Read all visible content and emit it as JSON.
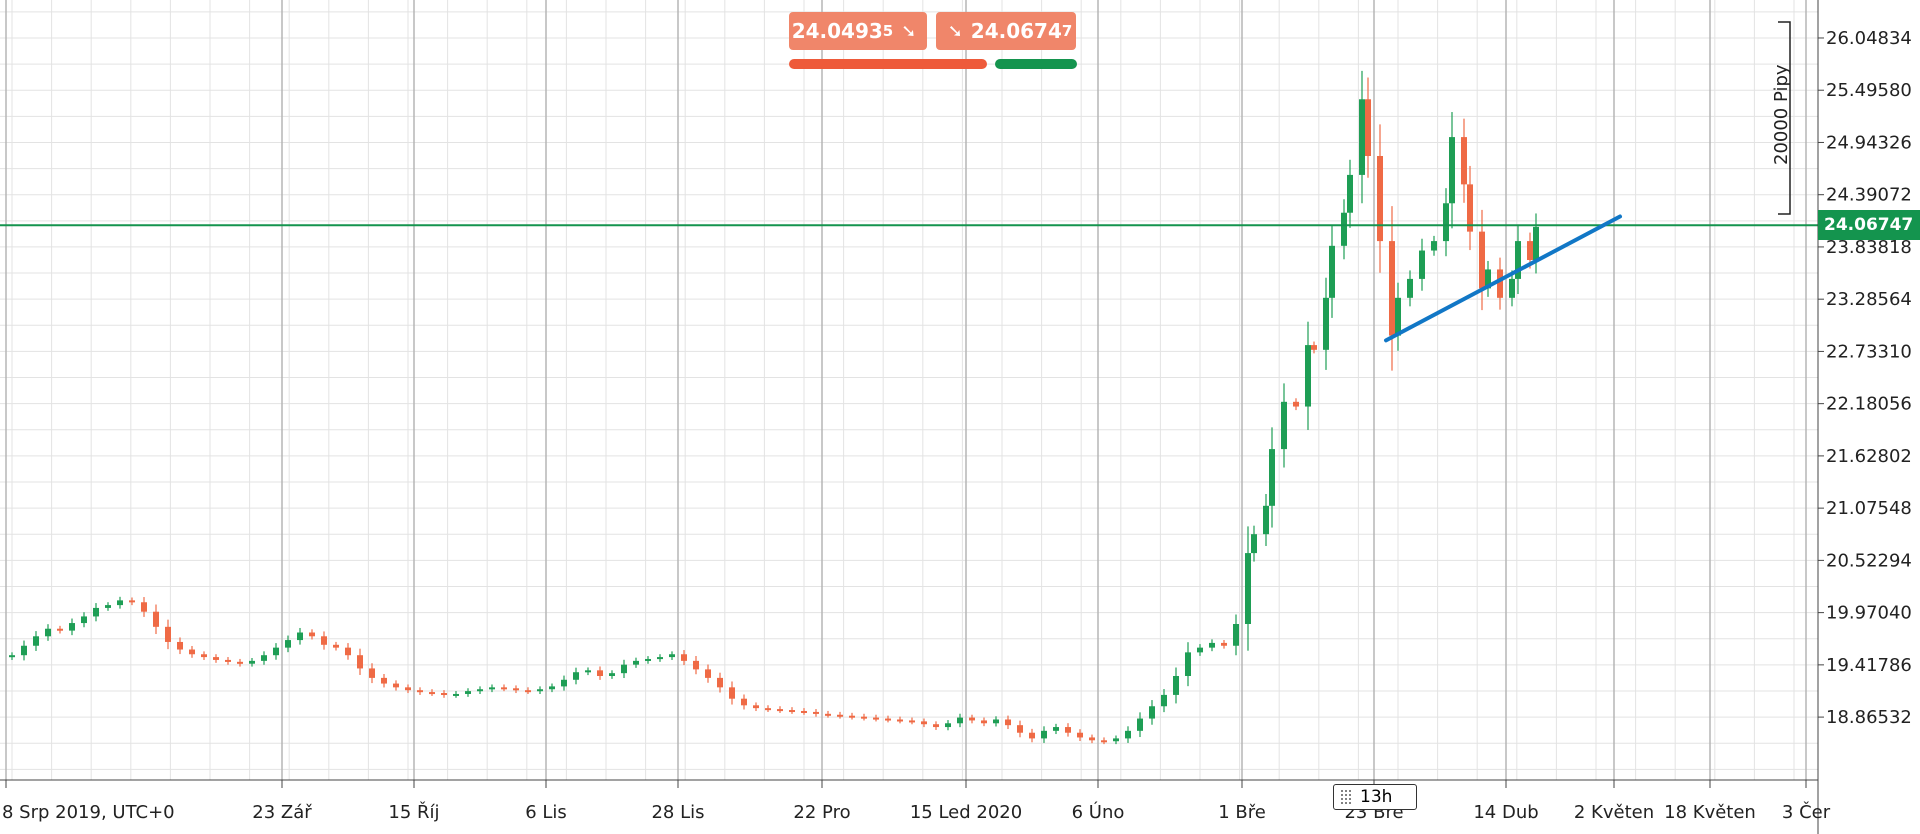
{
  "quotes": {
    "sell": {
      "main": "24.0493",
      "last": "5",
      "arrow": "➘"
    },
    "buy": {
      "main": "24.0674",
      "last": "7",
      "arrow": "➘"
    },
    "sell_ratio": 0.7,
    "buy_ratio": 0.3
  },
  "colors": {
    "up": "#1e9e55",
    "down": "#ef6a45",
    "trend": "#1177c6",
    "price_line": "#14944e",
    "grid": "#e3e3e3",
    "sell_badge": "#f0866a",
    "sell_bar": "#ee5a3a",
    "buy_bar": "#14944e"
  },
  "range_label": "20000 Pipy",
  "timeframe": "13h",
  "chart_data": {
    "type": "candlestick",
    "current_price": 24.06747,
    "current_price_label": "24.06747",
    "y_ticks": [
      "26.04834",
      "25.49580",
      "24.94326",
      "24.39072",
      "23.83818",
      "23.28564",
      "22.73310",
      "22.18056",
      "21.62802",
      "21.07548",
      "20.52294",
      "19.97040",
      "19.41786",
      "18.86532"
    ],
    "ylim": [
      18.2,
      26.45
    ],
    "x_labels": [
      {
        "label": "8 Srp 2019, UTC+0",
        "date": "2019-08-08"
      },
      {
        "label": "23 Zář",
        "date": "2019-09-23"
      },
      {
        "label": "15 Říj",
        "date": "2019-10-15"
      },
      {
        "label": "6 Lis",
        "date": "2019-11-06"
      },
      {
        "label": "28 Lis",
        "date": "2019-11-28"
      },
      {
        "label": "22 Pro",
        "date": "2019-12-22"
      },
      {
        "label": "15 Led 2020",
        "date": "2020-01-15"
      },
      {
        "label": "6 Úno",
        "date": "2020-02-06"
      },
      {
        "label": "1 Bře",
        "date": "2020-03-01"
      },
      {
        "label": "23 Bře",
        "date": "2020-03-23"
      },
      {
        "label": "14 Dub",
        "date": "2020-04-14"
      },
      {
        "label": "2 Květen",
        "date": "2020-05-02"
      },
      {
        "label": "18 Květen",
        "date": "2020-05-18"
      },
      {
        "label": "3 Čer",
        "date": "2020-06-03"
      }
    ],
    "xlim": [
      "2019-08-07",
      "2020-06-05"
    ],
    "trendline": [
      {
        "date": "2020-03-25",
        "price": 22.85
      },
      {
        "date": "2020-05-03",
        "price": 24.16
      }
    ],
    "close_series": [
      [
        "2019-08-07",
        19.5
      ],
      [
        "2019-08-09",
        19.52
      ],
      [
        "2019-08-11",
        19.62
      ],
      [
        "2019-08-13",
        19.72
      ],
      [
        "2019-08-15",
        19.8
      ],
      [
        "2019-08-17",
        19.78
      ],
      [
        "2019-08-19",
        19.86
      ],
      [
        "2019-08-21",
        19.93
      ],
      [
        "2019-08-23",
        20.02
      ],
      [
        "2019-08-25",
        20.05
      ],
      [
        "2019-08-27",
        20.1
      ],
      [
        "2019-08-29",
        20.08
      ],
      [
        "2019-08-31",
        19.98
      ],
      [
        "2019-09-02",
        19.82
      ],
      [
        "2019-09-04",
        19.66
      ],
      [
        "2019-09-06",
        19.58
      ],
      [
        "2019-09-08",
        19.53
      ],
      [
        "2019-09-10",
        19.5
      ],
      [
        "2019-09-12",
        19.47
      ],
      [
        "2019-09-14",
        19.45
      ],
      [
        "2019-09-16",
        19.43
      ],
      [
        "2019-09-18",
        19.46
      ],
      [
        "2019-09-20",
        19.52
      ],
      [
        "2019-09-22",
        19.6
      ],
      [
        "2019-09-24",
        19.68
      ],
      [
        "2019-09-26",
        19.76
      ],
      [
        "2019-09-28",
        19.72
      ],
      [
        "2019-09-30",
        19.63
      ],
      [
        "2019-10-02",
        19.6
      ],
      [
        "2019-10-04",
        19.52
      ],
      [
        "2019-10-06",
        19.38
      ],
      [
        "2019-10-08",
        19.28
      ],
      [
        "2019-10-10",
        19.22
      ],
      [
        "2019-10-12",
        19.18
      ],
      [
        "2019-10-14",
        19.15
      ],
      [
        "2019-10-16",
        19.13
      ],
      [
        "2019-10-18",
        19.12
      ],
      [
        "2019-10-20",
        19.1
      ],
      [
        "2019-10-22",
        19.11
      ],
      [
        "2019-10-24",
        19.14
      ],
      [
        "2019-10-26",
        19.16
      ],
      [
        "2019-10-28",
        19.18
      ],
      [
        "2019-10-30",
        19.17
      ],
      [
        "2019-11-01",
        19.15
      ],
      [
        "2019-11-03",
        19.14
      ],
      [
        "2019-11-05",
        19.16
      ],
      [
        "2019-11-07",
        19.19
      ],
      [
        "2019-11-09",
        19.26
      ],
      [
        "2019-11-11",
        19.34
      ],
      [
        "2019-11-13",
        19.36
      ],
      [
        "2019-11-15",
        19.3
      ],
      [
        "2019-11-17",
        19.33
      ],
      [
        "2019-11-19",
        19.42
      ],
      [
        "2019-11-21",
        19.46
      ],
      [
        "2019-11-23",
        19.48
      ],
      [
        "2019-11-25",
        19.5
      ],
      [
        "2019-11-27",
        19.53
      ],
      [
        "2019-11-29",
        19.46
      ],
      [
        "2019-12-01",
        19.37
      ],
      [
        "2019-12-03",
        19.28
      ],
      [
        "2019-12-05",
        19.18
      ],
      [
        "2019-12-07",
        19.06
      ],
      [
        "2019-12-09",
        18.99
      ],
      [
        "2019-12-11",
        18.96
      ],
      [
        "2019-12-13",
        18.95
      ],
      [
        "2019-12-15",
        18.94
      ],
      [
        "2019-12-17",
        18.93
      ],
      [
        "2019-12-19",
        18.92
      ],
      [
        "2019-12-21",
        18.9
      ],
      [
        "2019-12-23",
        18.89
      ],
      [
        "2019-12-25",
        18.88
      ],
      [
        "2019-12-27",
        18.87
      ],
      [
        "2019-12-29",
        18.86
      ],
      [
        "2019-12-31",
        18.85
      ],
      [
        "2020-01-02",
        18.84
      ],
      [
        "2020-01-04",
        18.83
      ],
      [
        "2020-01-06",
        18.82
      ],
      [
        "2020-01-08",
        18.79
      ],
      [
        "2020-01-10",
        18.76
      ],
      [
        "2020-01-12",
        18.8
      ],
      [
        "2020-01-14",
        18.86
      ],
      [
        "2020-01-16",
        18.83
      ],
      [
        "2020-01-18",
        18.8
      ],
      [
        "2020-01-20",
        18.84
      ],
      [
        "2020-01-22",
        18.78
      ],
      [
        "2020-01-24",
        18.7
      ],
      [
        "2020-01-26",
        18.64
      ],
      [
        "2020-01-28",
        18.72
      ],
      [
        "2020-01-30",
        18.76
      ],
      [
        "2020-02-01",
        18.7
      ],
      [
        "2020-02-03",
        18.65
      ],
      [
        "2020-02-05",
        18.62
      ],
      [
        "2020-02-07",
        18.61
      ],
      [
        "2020-02-09",
        18.64
      ],
      [
        "2020-02-11",
        18.72
      ],
      [
        "2020-02-13",
        18.85
      ],
      [
        "2020-02-15",
        18.98
      ],
      [
        "2020-02-17",
        19.1
      ],
      [
        "2020-02-19",
        19.3
      ],
      [
        "2020-02-21",
        19.55
      ],
      [
        "2020-02-23",
        19.6
      ],
      [
        "2020-02-25",
        19.65
      ],
      [
        "2020-02-27",
        19.62
      ],
      [
        "2020-02-29",
        19.85
      ],
      [
        "2020-03-02",
        20.6
      ],
      [
        "2020-03-03",
        20.8
      ],
      [
        "2020-03-05",
        21.1
      ],
      [
        "2020-03-06",
        21.7
      ],
      [
        "2020-03-08",
        22.2
      ],
      [
        "2020-03-10",
        22.15
      ],
      [
        "2020-03-12",
        22.8
      ],
      [
        "2020-03-13",
        22.75
      ],
      [
        "2020-03-15",
        23.3
      ],
      [
        "2020-03-16",
        23.85
      ],
      [
        "2020-03-18",
        24.2
      ],
      [
        "2020-03-19",
        24.6
      ],
      [
        "2020-03-21",
        25.4
      ],
      [
        "2020-03-22",
        24.8
      ],
      [
        "2020-03-24",
        23.9
      ],
      [
        "2020-03-26",
        22.9
      ],
      [
        "2020-03-27",
        23.3
      ],
      [
        "2020-03-29",
        23.5
      ],
      [
        "2020-03-31",
        23.8
      ],
      [
        "2020-04-02",
        23.9
      ],
      [
        "2020-04-04",
        24.3
      ],
      [
        "2020-04-05",
        25.0
      ],
      [
        "2020-04-07",
        24.5
      ],
      [
        "2020-04-08",
        24.0
      ],
      [
        "2020-04-10",
        23.4
      ],
      [
        "2020-04-11",
        23.6
      ],
      [
        "2020-04-13",
        23.3
      ],
      [
        "2020-04-15",
        23.5
      ],
      [
        "2020-04-16",
        23.9
      ],
      [
        "2020-04-18",
        23.7
      ],
      [
        "2020-04-19",
        24.05
      ]
    ]
  }
}
